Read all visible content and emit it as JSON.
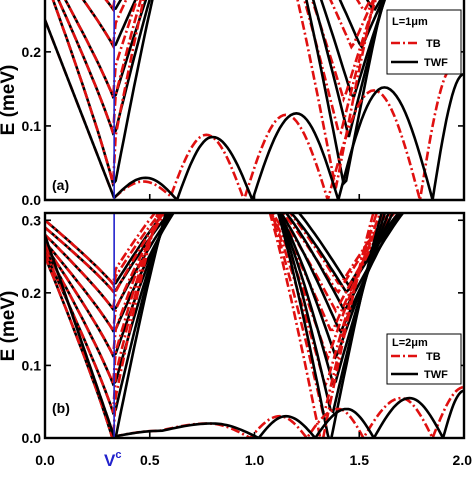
{
  "xlabel_marker": "V",
  "xlabel_marker_sup": "c",
  "colors": {
    "TB": "#e01010",
    "TWF": "#000000",
    "vline": "#2222cc"
  },
  "chart_data": [
    {
      "type": "line",
      "panel_label": "(a)",
      "ylabel": "E (meV)",
      "xlim": [
        0.0,
        2.0
      ],
      "ylim": [
        0.0,
        0.27
      ],
      "x_ticks": [
        "0.0",
        "0.5",
        "1.0",
        "1.5",
        "2.0"
      ],
      "y_ticks": [
        "0.0",
        "0.1",
        "0.2"
      ],
      "vline_x": 0.33,
      "legend": {
        "title": "L=1μm",
        "entries": [
          "TB",
          "TWF"
        ],
        "placement": "top-right"
      },
      "series": [
        {
          "name": "TB",
          "points": [
            [
              0.33,
              0.003
            ],
            [
              0.47,
              0.025
            ],
            [
              0.6,
              0.005
            ],
            [
              0.77,
              0.088
            ],
            [
              0.95,
              0.0
            ],
            [
              1.15,
              0.115
            ],
            [
              1.35,
              0.0
            ],
            [
              1.57,
              0.148
            ],
            [
              1.79,
              0.0
            ],
            [
              1.95,
              0.18
            ]
          ]
        },
        {
          "name": "TWF",
          "points": [
            [
              0.33,
              0.003
            ],
            [
              0.48,
              0.03
            ],
            [
              0.63,
              0.0
            ],
            [
              0.8,
              0.085
            ],
            [
              0.99,
              0.0
            ],
            [
              1.2,
              0.117
            ],
            [
              1.4,
              0.0
            ],
            [
              1.62,
              0.152
            ],
            [
              1.85,
              0.0
            ],
            [
              2.0,
              0.17
            ]
          ]
        }
      ]
    },
    {
      "type": "line",
      "panel_label": "(b)",
      "ylabel": "E (meV)",
      "xlim": [
        0.0,
        2.0
      ],
      "ylim": [
        0.0,
        0.31
      ],
      "x_ticks": [
        "0.0",
        "0.5",
        "1.0",
        "1.5",
        "2.0"
      ],
      "y_ticks": [
        "0.0",
        "0.1",
        "0.2",
        "0.3"
      ],
      "vline_x": 0.33,
      "legend": {
        "title": "L=2μm",
        "entries": [
          "TB",
          "TWF"
        ],
        "placement": "right"
      },
      "series": [
        {
          "name": "TB",
          "points": [
            [
              0.33,
              0.002
            ],
            [
              0.55,
              0.01
            ],
            [
              0.78,
              0.02
            ],
            [
              0.98,
              0.0
            ],
            [
              1.12,
              0.03
            ],
            [
              1.25,
              0.0
            ],
            [
              1.4,
              0.04
            ],
            [
              1.52,
              0.0
            ],
            [
              1.7,
              0.055
            ],
            [
              1.85,
              0.0
            ],
            [
              2.0,
              0.07
            ]
          ]
        },
        {
          "name": "TWF",
          "points": [
            [
              0.33,
              0.002
            ],
            [
              0.56,
              0.01
            ],
            [
              0.8,
              0.02
            ],
            [
              1.02,
              0.0
            ],
            [
              1.15,
              0.03
            ],
            [
              1.29,
              0.0
            ],
            [
              1.44,
              0.04
            ],
            [
              1.57,
              0.0
            ],
            [
              1.74,
              0.055
            ],
            [
              1.9,
              0.0
            ],
            [
              2.0,
              0.065
            ]
          ]
        }
      ]
    }
  ]
}
